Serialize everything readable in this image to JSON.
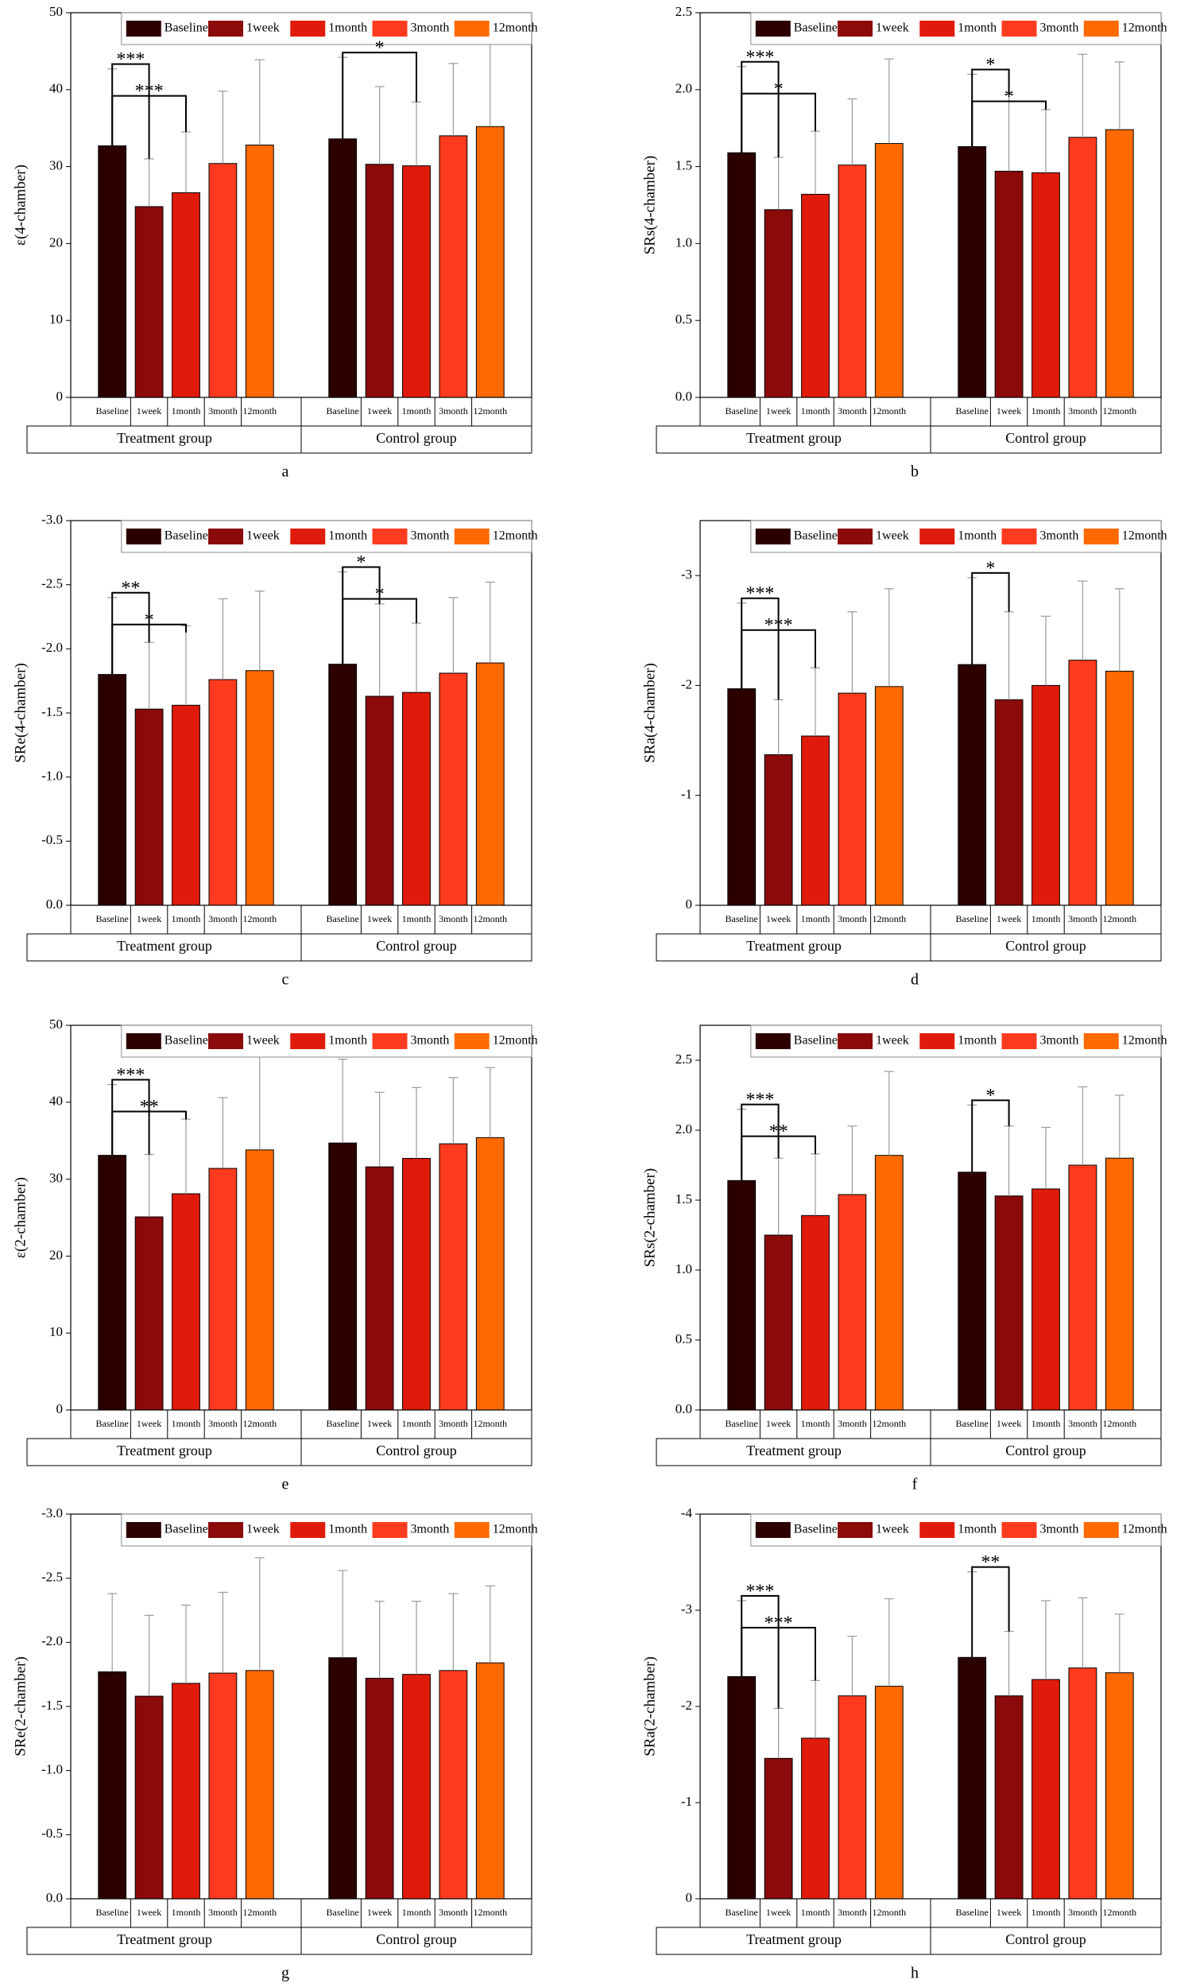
{
  "chart_data": [
    {
      "type": "bar",
      "label": "a",
      "y_label": "ε(4-chamber)",
      "groups": [
        "Treatment group",
        "Control group"
      ],
      "ylim": [
        0,
        50
      ],
      "yticks": [
        0,
        10,
        20,
        30,
        40,
        50
      ],
      "legend": "top-right",
      "series": [
        {
          "name": "Baseline",
          "color": "#2d0000",
          "values": [
            32.7,
            33.6
          ],
          "errors": [
            10.0,
            10.6
          ]
        },
        {
          "name": "1week",
          "color": "#8b0a0a",
          "values": [
            24.8,
            30.3
          ],
          "errors": [
            6.2,
            10.1
          ]
        },
        {
          "name": "1month",
          "color": "#e01b0b",
          "values": [
            26.6,
            30.1
          ],
          "errors": [
            7.9,
            8.3
          ]
        },
        {
          "name": "3month",
          "color": "#ff3b1f",
          "values": [
            30.4,
            34.0
          ],
          "errors": [
            9.4,
            9.4
          ]
        },
        {
          "name": "12month",
          "color": "#ff6a00",
          "values": [
            32.8,
            35.2
          ],
          "errors": [
            11.1,
            12.0
          ]
        }
      ],
      "annotations": [
        {
          "text": "***",
          "group": 0,
          "from": 0,
          "to": 1
        },
        {
          "text": "***",
          "group": 0,
          "from": 0,
          "to": 2
        },
        {
          "text": "*",
          "group": 1,
          "from": 0,
          "to": 2
        }
      ]
    },
    {
      "type": "bar",
      "label": "b",
      "y_label": "SRs(4-chamber)",
      "groups": [
        "Treatment group",
        "Control group"
      ],
      "ylim": [
        0,
        2.5
      ],
      "yticks": [
        {
          "value": 0,
          "label": "0.0"
        },
        0.5,
        {
          "value": 1,
          "label": "1.0"
        },
        1.5,
        {
          "value": 2,
          "label": "2.0"
        },
        2.5
      ],
      "legend": "top-right",
      "series": [
        {
          "name": "Baseline",
          "color": "#2d0000",
          "values": [
            1.59,
            1.63
          ],
          "errors": [
            0.56,
            0.47
          ]
        },
        {
          "name": "1week",
          "color": "#8b0a0a",
          "values": [
            1.22,
            1.47
          ],
          "errors": [
            0.34,
            0.5
          ]
        },
        {
          "name": "1month",
          "color": "#e01b0b",
          "values": [
            1.32,
            1.46
          ],
          "errors": [
            0.41,
            0.41
          ]
        },
        {
          "name": "3month",
          "color": "#ff3b1f",
          "values": [
            1.51,
            1.69
          ],
          "errors": [
            0.43,
            0.54
          ]
        },
        {
          "name": "12month",
          "color": "#ff6a00",
          "values": [
            1.65,
            1.74
          ],
          "errors": [
            0.55,
            0.44
          ]
        }
      ],
      "annotations": [
        {
          "text": "***",
          "group": 0,
          "from": 0,
          "to": 1
        },
        {
          "text": "*",
          "group": 0,
          "from": 0,
          "to": 2
        },
        {
          "text": "*",
          "group": 1,
          "from": 0,
          "to": 1
        },
        {
          "text": "*",
          "group": 1,
          "from": 0,
          "to": 2
        }
      ]
    },
    {
      "type": "bar",
      "label": "c",
      "y_label": "SRe(4-chamber)",
      "groups": [
        "Treatment group",
        "Control group"
      ],
      "ylim": [
        0,
        -3
      ],
      "yticks": [
        {
          "value": 0,
          "label": "0.0"
        },
        -0.5,
        {
          "value": -1,
          "label": "-1.0"
        },
        -1.5,
        {
          "value": -2,
          "label": "-2.0"
        },
        -2.5,
        {
          "value": -3,
          "label": "-3.0"
        }
      ],
      "legend": "top-right",
      "series": [
        {
          "name": "Baseline",
          "color": "#2d0000",
          "values": [
            -1.8,
            -1.88
          ],
          "errors": [
            0.6,
            0.72
          ]
        },
        {
          "name": "1week",
          "color": "#8b0a0a",
          "values": [
            -1.53,
            -1.63
          ],
          "errors": [
            0.52,
            0.72
          ]
        },
        {
          "name": "1month",
          "color": "#e01b0b",
          "values": [
            -1.56,
            -1.66
          ],
          "errors": [
            0.62,
            0.54
          ]
        },
        {
          "name": "3month",
          "color": "#ff3b1f",
          "values": [
            -1.76,
            -1.81
          ],
          "errors": [
            0.63,
            0.59
          ]
        },
        {
          "name": "12month",
          "color": "#ff6a00",
          "values": [
            -1.83,
            -1.89
          ],
          "errors": [
            0.62,
            0.63
          ]
        }
      ],
      "annotations": [
        {
          "text": "**",
          "group": 0,
          "from": 0,
          "to": 1
        },
        {
          "text": "*",
          "group": 0,
          "from": 0,
          "to": 2
        },
        {
          "text": "*",
          "group": 1,
          "from": 0,
          "to": 1
        },
        {
          "text": "*",
          "group": 1,
          "from": 0,
          "to": 2
        }
      ]
    },
    {
      "type": "bar",
      "label": "d",
      "y_label": "SRa(4-chamber)",
      "groups": [
        "Treatment group",
        "Control group"
      ],
      "ylim": [
        0,
        -3.5
      ],
      "yticks": [
        0,
        -1,
        -2,
        -3
      ],
      "legend": "top-right",
      "series": [
        {
          "name": "Baseline",
          "color": "#2d0000",
          "values": [
            -1.97,
            -2.19
          ],
          "errors": [
            0.78,
            0.79
          ]
        },
        {
          "name": "1week",
          "color": "#8b0a0a",
          "values": [
            -1.37,
            -1.87
          ],
          "errors": [
            0.5,
            0.8
          ]
        },
        {
          "name": "1month",
          "color": "#e01b0b",
          "values": [
            -1.54,
            -2.0
          ],
          "errors": [
            0.62,
            0.63
          ]
        },
        {
          "name": "3month",
          "color": "#ff3b1f",
          "values": [
            -1.93,
            -2.23
          ],
          "errors": [
            0.74,
            0.72
          ]
        },
        {
          "name": "12month",
          "color": "#ff6a00",
          "values": [
            -1.99,
            -2.13
          ],
          "errors": [
            0.89,
            0.75
          ]
        }
      ],
      "annotations": [
        {
          "text": "***",
          "group": 0,
          "from": 0,
          "to": 1
        },
        {
          "text": "***",
          "group": 0,
          "from": 0,
          "to": 2
        },
        {
          "text": "*",
          "group": 1,
          "from": 0,
          "to": 1
        }
      ]
    },
    {
      "type": "bar",
      "label": "e",
      "y_label": "ε(2-chamber)",
      "groups": [
        "Treatment group",
        "Control group"
      ],
      "ylim": [
        0,
        50
      ],
      "yticks": [
        0,
        10,
        20,
        30,
        40,
        50
      ],
      "legend": "top-right",
      "series": [
        {
          "name": "Baseline",
          "color": "#2d0000",
          "values": [
            33.1,
            34.7
          ],
          "errors": [
            9.2,
            10.9
          ]
        },
        {
          "name": "1week",
          "color": "#8b0a0a",
          "values": [
            25.1,
            31.6
          ],
          "errors": [
            8.1,
            9.7
          ]
        },
        {
          "name": "1month",
          "color": "#e01b0b",
          "values": [
            28.1,
            32.7
          ],
          "errors": [
            9.7,
            9.2
          ]
        },
        {
          "name": "3month",
          "color": "#ff3b1f",
          "values": [
            31.4,
            34.6
          ],
          "errors": [
            9.2,
            8.6
          ]
        },
        {
          "name": "12month",
          "color": "#ff6a00",
          "values": [
            33.8,
            35.4
          ],
          "errors": [
            12.4,
            9.1
          ]
        }
      ],
      "annotations": [
        {
          "text": "***",
          "group": 0,
          "from": 0,
          "to": 1
        },
        {
          "text": "**",
          "group": 0,
          "from": 0,
          "to": 2
        }
      ]
    },
    {
      "type": "bar",
      "label": "f",
      "y_label": "SRs(2-chamber)",
      "groups": [
        "Treatment group",
        "Control group"
      ],
      "ylim": [
        0,
        2.75
      ],
      "yticks": [
        {
          "value": 0,
          "label": "0.0"
        },
        0.5,
        {
          "value": 1,
          "label": "1.0"
        },
        1.5,
        {
          "value": 2,
          "label": "2.0"
        },
        2.5
      ],
      "legend": "top-right",
      "series": [
        {
          "name": "Baseline",
          "color": "#2d0000",
          "values": [
            1.64,
            1.7
          ],
          "errors": [
            0.51,
            0.48
          ]
        },
        {
          "name": "1week",
          "color": "#8b0a0a",
          "values": [
            1.25,
            1.53
          ],
          "errors": [
            0.55,
            0.5
          ]
        },
        {
          "name": "1month",
          "color": "#e01b0b",
          "values": [
            1.39,
            1.58
          ],
          "errors": [
            0.44,
            0.44
          ]
        },
        {
          "name": "3month",
          "color": "#ff3b1f",
          "values": [
            1.54,
            1.75
          ],
          "errors": [
            0.49,
            0.56
          ]
        },
        {
          "name": "12month",
          "color": "#ff6a00",
          "values": [
            1.82,
            1.8
          ],
          "errors": [
            0.6,
            0.45
          ]
        }
      ],
      "annotations": [
        {
          "text": "***",
          "group": 0,
          "from": 0,
          "to": 1
        },
        {
          "text": "**",
          "group": 0,
          "from": 0,
          "to": 2
        },
        {
          "text": "*",
          "group": 1,
          "from": 0,
          "to": 1
        }
      ]
    },
    {
      "type": "bar",
      "label": "g",
      "y_label": "SRe(2-chamber)",
      "groups": [
        "Treatment group",
        "Control group"
      ],
      "ylim": [
        0,
        -3
      ],
      "yticks": [
        {
          "value": 0,
          "label": "0.0"
        },
        -0.5,
        {
          "value": -1,
          "label": "-1.0"
        },
        -1.5,
        {
          "value": -2,
          "label": "-2.0"
        },
        -2.5,
        {
          "value": -3,
          "label": "-3.0"
        }
      ],
      "legend": "top-right",
      "series": [
        {
          "name": "Baseline",
          "color": "#2d0000",
          "values": [
            -1.77,
            -1.88
          ],
          "errors": [
            0.61,
            0.68
          ]
        },
        {
          "name": "1week",
          "color": "#8b0a0a",
          "values": [
            -1.58,
            -1.72
          ],
          "errors": [
            0.63,
            0.6
          ]
        },
        {
          "name": "1month",
          "color": "#e01b0b",
          "values": [
            -1.68,
            -1.75
          ],
          "errors": [
            0.61,
            0.57
          ]
        },
        {
          "name": "3month",
          "color": "#ff3b1f",
          "values": [
            -1.76,
            -1.78
          ],
          "errors": [
            0.63,
            0.6
          ]
        },
        {
          "name": "12month",
          "color": "#ff6a00",
          "values": [
            -1.78,
            -1.84
          ],
          "errors": [
            0.88,
            0.6
          ]
        }
      ],
      "annotations": []
    },
    {
      "type": "bar",
      "label": "h",
      "y_label": "SRa(2-chamber)",
      "groups": [
        "Treatment group",
        "Control group"
      ],
      "ylim": [
        0,
        -4
      ],
      "yticks": [
        0,
        -1,
        -2,
        -3,
        -4
      ],
      "legend": "top-right",
      "series": [
        {
          "name": "Baseline",
          "color": "#2d0000",
          "values": [
            -2.31,
            -2.51
          ],
          "errors": [
            0.79,
            0.89
          ]
        },
        {
          "name": "1week",
          "color": "#8b0a0a",
          "values": [
            -1.46,
            -2.11
          ],
          "errors": [
            0.52,
            0.67
          ]
        },
        {
          "name": "1month",
          "color": "#e01b0b",
          "values": [
            -1.67,
            -2.28
          ],
          "errors": [
            0.6,
            0.82
          ]
        },
        {
          "name": "3month",
          "color": "#ff3b1f",
          "values": [
            -2.11,
            -2.4
          ],
          "errors": [
            0.62,
            0.73
          ]
        },
        {
          "name": "12month",
          "color": "#ff6a00",
          "values": [
            -2.21,
            -2.35
          ],
          "errors": [
            0.91,
            0.61
          ]
        }
      ],
      "annotations": [
        {
          "text": "***",
          "group": 0,
          "from": 0,
          "to": 1
        },
        {
          "text": "***",
          "group": 0,
          "from": 0,
          "to": 2
        },
        {
          "text": "**",
          "group": 1,
          "from": 0,
          "to": 1
        }
      ]
    }
  ]
}
